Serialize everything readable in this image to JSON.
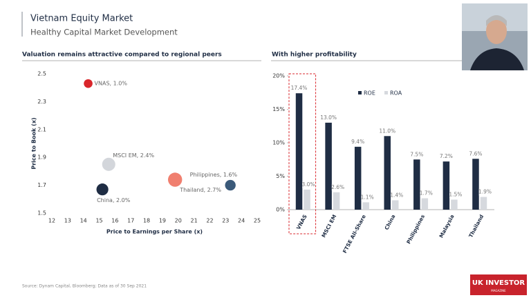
{
  "header": {
    "title": "Vietnam Equity Market",
    "subtitle": "Healthy Capital Market Development"
  },
  "chart_data": [
    {
      "type": "scatter",
      "title": "Valuation remains attractive compared to regional peers",
      "x_label": "Price to Earnings per Share (x)",
      "y_label": "Price to Book (x)",
      "point_labels": [
        "VNAS, 1.0%",
        "MSCI EM, 2.4%",
        "China, 2.0%",
        "Thailand, 2.7%",
        "Philippines, 1.6%"
      ],
      "x": [
        14.3,
        15.6,
        15.2,
        19.8,
        23.3
      ],
      "values": [
        2.43,
        1.85,
        1.67,
        1.74,
        1.7
      ],
      "sizes": [
        1.0,
        2.4,
        2.0,
        2.7,
        1.6
      ],
      "colors": [
        "#d9262b",
        "#d3d6db",
        "#1f2d44",
        "#f07f6f",
        "#3b5a7a"
      ],
      "xlim": [
        12,
        25
      ],
      "xticks": [
        12,
        13,
        14,
        15,
        16,
        17,
        18,
        19,
        20,
        21,
        22,
        23,
        24,
        25
      ],
      "ylim": [
        1.5,
        2.5
      ],
      "yticks": [
        1.5,
        1.7,
        1.9,
        2.1,
        2.3,
        2.5
      ]
    },
    {
      "type": "bar",
      "title": "With higher profitability",
      "categories": [
        "VNAS",
        "MSCI EM",
        "FTSE All-Share",
        "China",
        "Philippines",
        "Malaysia",
        "Thailand"
      ],
      "series": [
        {
          "name": "ROE",
          "color": "#1f2d44",
          "values": [
            17.4,
            13.0,
            9.4,
            11.0,
            7.5,
            7.2,
            7.6
          ],
          "value_labels": [
            "17.4%",
            "13.0%",
            "9.4%",
            "11.0%",
            "7.5%",
            "7.2%",
            "7.6%"
          ]
        },
        {
          "name": "ROA",
          "color": "#d6d9de",
          "values": [
            3.0,
            2.6,
            1.1,
            1.4,
            1.7,
            1.5,
            1.9
          ],
          "value_labels": [
            "3.0%",
            "2.6%",
            "1.1%",
            "1.4%",
            "1.7%",
            "1.5%",
            "1.9%"
          ]
        }
      ],
      "ylim": [
        0,
        20
      ],
      "yticks": [
        {
          "value": 0,
          "label": "0%"
        },
        {
          "value": 5,
          "label": "5%"
        },
        {
          "value": 10,
          "label": "10%"
        },
        {
          "value": 15,
          "label": "15%"
        },
        {
          "value": 20,
          "label": "20%"
        }
      ]
    }
  ],
  "source": "Source: Dynam Capital, Bloomberg; Data as of 30 Sep 2021",
  "logo": {
    "name": "UK INVESTOR",
    "tagline": "MAGAZINE"
  }
}
